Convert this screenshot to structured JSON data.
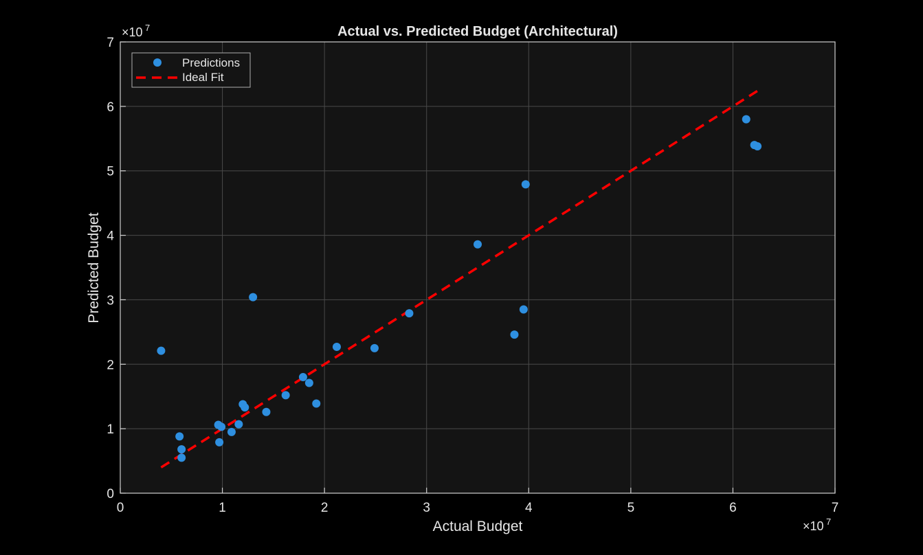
{
  "chart_data": {
    "type": "scatter",
    "title": "Actual vs. Predicted Budget (Architectural)",
    "xlabel": "Actual Budget",
    "ylabel": "Predicted Budget",
    "x_exponent_label": "×10",
    "x_exponent_power": "7",
    "y_exponent_label": "×10",
    "y_exponent_power": "7",
    "xlim": [
      0,
      70000000
    ],
    "ylim": [
      0,
      70000000
    ],
    "xticks": [
      0,
      10000000,
      20000000,
      30000000,
      40000000,
      50000000,
      60000000,
      70000000
    ],
    "yticks": [
      0,
      10000000,
      20000000,
      30000000,
      40000000,
      50000000,
      60000000,
      70000000
    ],
    "xtick_labels": [
      "0",
      "1",
      "2",
      "3",
      "4",
      "5",
      "6",
      "7"
    ],
    "ytick_labels": [
      "0",
      "1",
      "2",
      "3",
      "4",
      "5",
      "6",
      "7"
    ],
    "grid": true,
    "legend_position": "top-left",
    "colors": {
      "background": "#000000",
      "axes_background": "#141414",
      "grid": "#4a4a4a",
      "axis": "#d0d0d0",
      "points": "#2e8fe0",
      "ideal_fit": "#ff0000"
    },
    "series": [
      {
        "name": "Predictions",
        "kind": "scatter",
        "x": [
          4000000,
          5800000,
          6000000,
          6000000,
          9600000,
          9700000,
          9900000,
          10900000,
          11600000,
          12000000,
          12200000,
          13000000,
          14300000,
          16200000,
          17900000,
          18500000,
          19200000,
          21200000,
          24900000,
          28300000,
          35000000,
          38600000,
          39500000,
          39700000,
          61300000,
          62100000,
          62400000
        ],
        "y": [
          22100000,
          8800000,
          6800000,
          5500000,
          10600000,
          7900000,
          10300000,
          9500000,
          10700000,
          13800000,
          13300000,
          30400000,
          12600000,
          15200000,
          18000000,
          17100000,
          13900000,
          22700000,
          22500000,
          27900000,
          38600000,
          24600000,
          28500000,
          47900000,
          58000000,
          54000000,
          53800000
        ]
      },
      {
        "name": "Ideal Fit",
        "kind": "line",
        "x": [
          4000000,
          62400000
        ],
        "y": [
          4000000,
          62400000
        ]
      }
    ]
  }
}
